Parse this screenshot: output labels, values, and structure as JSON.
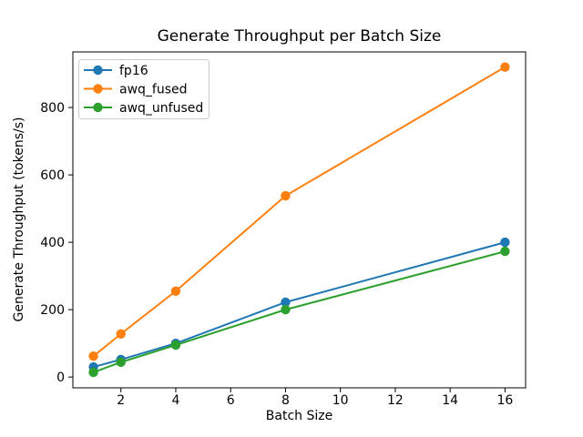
{
  "chart_data": {
    "type": "line",
    "title": "Generate Throughput per Batch Size",
    "xlabel": "Batch Size",
    "ylabel": "Generate Throughput (tokens/s)",
    "x": [
      1,
      2,
      4,
      8,
      16
    ],
    "series": [
      {
        "name": "fp16",
        "color": "#1f77b4",
        "values": [
          30,
          52,
          100,
          222,
          400
        ]
      },
      {
        "name": "awq_fused",
        "color": "#ff7f0e",
        "values": [
          62,
          128,
          255,
          538,
          920
        ]
      },
      {
        "name": "awq_unfused",
        "color": "#2ca02c",
        "values": [
          14,
          44,
          95,
          200,
          373
        ]
      }
    ],
    "xticks": [
      2,
      4,
      6,
      8,
      10,
      12,
      14,
      16
    ],
    "yticks": [
      0,
      200,
      400,
      600,
      800
    ],
    "xlim": [
      0.25,
      16.75
    ],
    "ylim": [
      -32,
      965
    ],
    "grid": false,
    "marker": "o",
    "legend_position": "upper left",
    "colors": {
      "spine": "#000000",
      "background": "#ffffff",
      "legend_border": "#cccccc",
      "legend_background": "#ffffff"
    }
  }
}
